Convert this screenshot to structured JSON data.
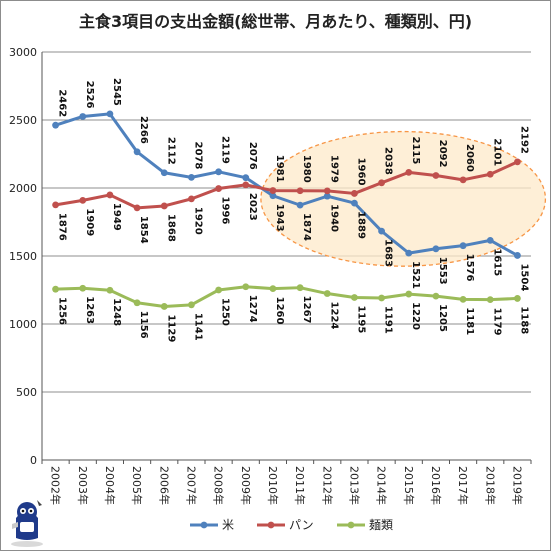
{
  "chart_data": {
    "type": "line",
    "title": "主食3項目の支出金額(総世帯、月あたり、種類別、円)",
    "xlabel": "",
    "ylabel": "",
    "categories": [
      "2002年",
      "2003年",
      "2004年",
      "2005年",
      "2006年",
      "2007年",
      "2008年",
      "2009年",
      "2010年",
      "2011年",
      "2012年",
      "2013年",
      "2014年",
      "2015年",
      "2016年",
      "2017年",
      "2018年",
      "2019年"
    ],
    "ylim": [
      0,
      3000
    ],
    "yticks": [
      0,
      500,
      1000,
      1500,
      2000,
      2500,
      3000
    ],
    "grid": true,
    "legend_position": "bottom",
    "series": [
      {
        "name": "米",
        "color": "#4f81bd",
        "values": [
          2462,
          2526,
          2545,
          2266,
          2112,
          2078,
          2119,
          2076,
          1943,
          1874,
          1940,
          1889,
          1683,
          1521,
          1553,
          1576,
          1615,
          1504
        ]
      },
      {
        "name": "パン",
        "color": "#c0504d",
        "values": [
          1876,
          1909,
          1949,
          1854,
          1868,
          1920,
          1996,
          2023,
          1981,
          1980,
          1979,
          1960,
          2038,
          2115,
          2092,
          2060,
          2101,
          2192
        ]
      },
      {
        "name": "麺類",
        "color": "#9bbb59",
        "values": [
          1256,
          1263,
          1248,
          1156,
          1129,
          1141,
          1250,
          1274,
          1260,
          1267,
          1224,
          1195,
          1191,
          1220,
          1205,
          1181,
          1179,
          1188
        ]
      }
    ],
    "annotations": [
      {
        "type": "ellipse",
        "color": "#f79646",
        "fill": "#fde9c9",
        "style": "dashed",
        "covers": [
          "2010年",
          "2019年"
        ]
      }
    ]
  }
}
